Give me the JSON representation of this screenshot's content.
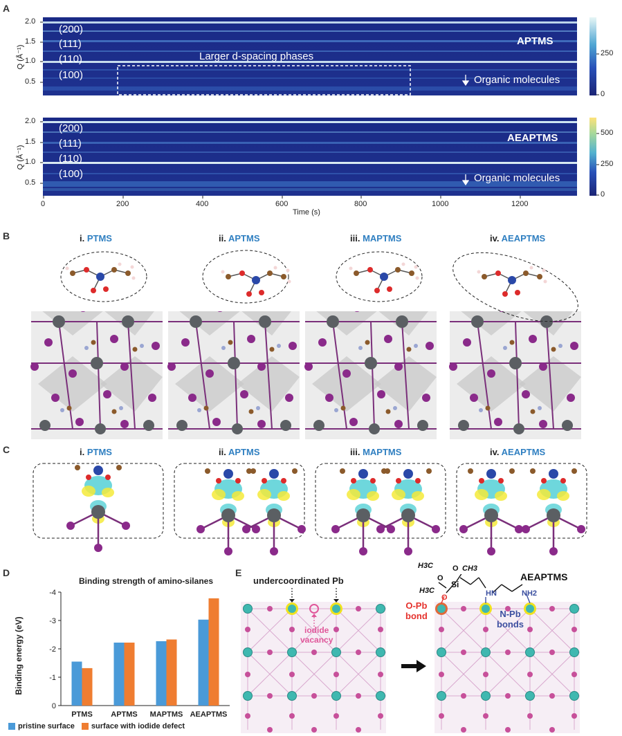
{
  "panel_letters": {
    "a": "A",
    "b": "B",
    "c": "C",
    "d": "D",
    "e": "E"
  },
  "panel_a": {
    "ylabel": "Q (Å⁻¹)",
    "xlabel": "Time (s)",
    "x_ticks": [
      "0",
      "200",
      "400",
      "600",
      "800",
      "1000",
      "1200"
    ],
    "y_ticks": [
      "2.0",
      "1.5",
      "1.0",
      "0.5"
    ],
    "top": {
      "material": "APTMS",
      "peaks": [
        "(200)",
        "(111)",
        "(110)",
        "(100)"
      ],
      "annotation": "Larger d-spacing phases",
      "organic": "Organic molecules",
      "colorbar_ticks": [
        "250",
        "0"
      ]
    },
    "bottom": {
      "material": "AEAPTMS",
      "peaks": [
        "(200)",
        "(111)",
        "(110)",
        "(100)"
      ],
      "organic": "Organic molecules",
      "colorbar_ticks": [
        "500",
        "250",
        "0"
      ]
    }
  },
  "panel_b": {
    "titles": [
      {
        "num": "i.",
        "name": "PTMS"
      },
      {
        "num": "ii.",
        "name": "APTMS"
      },
      {
        "num": "iii.",
        "name": "MAPTMS"
      },
      {
        "num": "iv.",
        "name": "AEAPTMS"
      }
    ]
  },
  "panel_c": {
    "titles": [
      {
        "num": "i.",
        "name": "PTMS"
      },
      {
        "num": "ii.",
        "name": "APTMS"
      },
      {
        "num": "iii.",
        "name": "MAPTMS"
      },
      {
        "num": "iv.",
        "name": "AEAPTMS"
      }
    ]
  },
  "chart_data": {
    "type": "bar",
    "title": "Binding strength of amino-silanes",
    "xlabel": "",
    "ylabel": "Binding energy (eV)",
    "categories": [
      "PTMS",
      "APTMS",
      "MAPTMS",
      "AEAPTMS"
    ],
    "ylim": [
      0,
      -4
    ],
    "y_ticks": [
      "0",
      "-1",
      "-2",
      "-3",
      "-4"
    ],
    "series": [
      {
        "name": "pristine surface",
        "color": "#4a9ad8",
        "values": [
          -1.55,
          -2.22,
          -2.27,
          -3.03
        ]
      },
      {
        "name": "surface with iodide defect",
        "color": "#ef7d31",
        "values": [
          -1.32,
          -2.22,
          -2.33,
          -3.78
        ]
      }
    ],
    "legend_position": "bottom"
  },
  "panel_e": {
    "label_undercoordinated": "undercoordinated Pb",
    "label_iodide_line1": "iodide",
    "label_iodide_line2": "vacancy",
    "molecule_name": "AEAPTMS",
    "label_opb_line1": "O-Pb",
    "label_opb_line2": "bond",
    "label_npb_line1": "N-Pb",
    "label_npb_line2": "bonds",
    "chem": {
      "h3c": "H3C",
      "o": "O",
      "ch3": "CH3",
      "si": "Si",
      "hn": "HN",
      "nh2": "NH2"
    }
  },
  "colors": {
    "heat_dark": "#1d2d8c",
    "heat_mid": "#2d58c4",
    "cb_top_a": "#e7f6f6",
    "cb_top_b": "#fde27a",
    "pb": "#3fb8b0",
    "iodine": "#b8338e",
    "opb_red": "#e5322d",
    "npb_blue": "#3b4fa0",
    "vacancy_pink": "#e0579a",
    "title_blue": "#2f7fc1"
  }
}
